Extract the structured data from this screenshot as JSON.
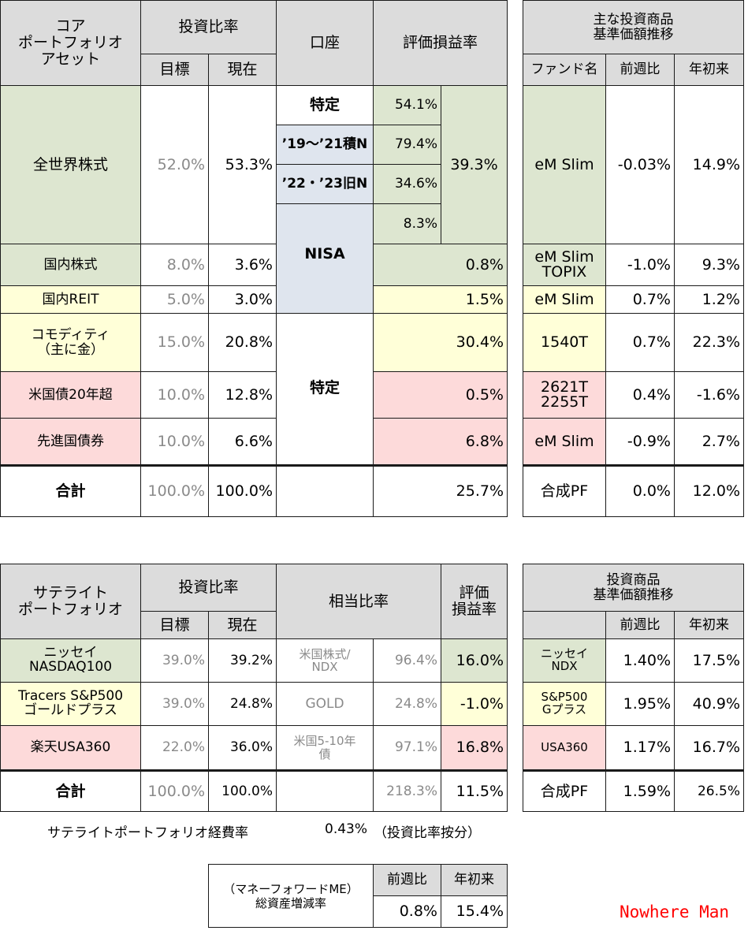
{
  "core": {
    "header": {
      "asset": "コア\nポートフォリオ\nアセット",
      "ratio": "投資比率",
      "target": "目標",
      "current": "現在",
      "account": "口座",
      "gain": "評価損益率"
    },
    "rows": {
      "world": {
        "name": "全世界株式",
        "target": "52.0%",
        "current": "53.3%",
        "total_gain": "39.3%"
      },
      "world_accounts": [
        {
          "account": "特定",
          "gain": "54.1%"
        },
        {
          "account": "’19～’21積N",
          "gain": "79.4%"
        },
        {
          "account": "’22・’23旧N",
          "gain": "34.6%"
        },
        {
          "account": "",
          "gain": "8.3%"
        }
      ],
      "nisa_label": "NISA",
      "tokutei_label": "特定",
      "domestic_stock": {
        "name": "国内株式",
        "target": "8.0%",
        "current": "3.6%",
        "gain": "0.8%"
      },
      "domestic_reit": {
        "name": "国内REIT",
        "target": "5.0%",
        "current": "3.0%",
        "gain": "1.5%"
      },
      "commodity": {
        "name": "コモディティ\n（主に金）",
        "target": "15.0%",
        "current": "20.8%",
        "gain": "30.4%"
      },
      "us_bond": {
        "name": "米国債20年超",
        "target": "10.0%",
        "current": "12.8%",
        "gain": "0.5%"
      },
      "dev_bond": {
        "name": "先進国債券",
        "target": "10.0%",
        "current": "6.6%",
        "gain": "6.8%"
      },
      "total": {
        "name": "合計",
        "target": "100.0%",
        "current": "100.0%",
        "gain": "25.7%"
      }
    }
  },
  "funds": {
    "title": "主な投資商品\n基準価額推移",
    "col_fund": "ファンド名",
    "col_week": "前週比",
    "col_ytd": "年初来",
    "rows": [
      {
        "name": "eM Slim",
        "week": "-0.03%",
        "ytd": "14.9%"
      },
      {
        "name": "eM Slim\nTOPIX",
        "week": "-1.0%",
        "ytd": "9.3%"
      },
      {
        "name": "eM Slim",
        "week": "0.7%",
        "ytd": "1.2%"
      },
      {
        "name": "1540T",
        "week": "0.7%",
        "ytd": "22.3%"
      },
      {
        "name": "2621T\n2255T",
        "week": "0.4%",
        "ytd": "-1.6%"
      },
      {
        "name": "eM Slim",
        "week": "-0.9%",
        "ytd": "2.7%"
      },
      {
        "name": "合成PF",
        "week": "0.0%",
        "ytd": "12.0%"
      }
    ]
  },
  "satellite": {
    "header": {
      "title": "サテライト\nポートフォリオ",
      "ratio": "投資比率",
      "target": "目標",
      "current": "現在",
      "equiv": "相当比率",
      "gain": "評価\n損益率"
    },
    "rows": [
      {
        "name": "ニッセイ\nNASDAQ100",
        "target": "39.0%",
        "current": "39.2%",
        "equiv_name": "米国株式/\nNDX",
        "equiv": "96.4%",
        "gain": "16.0%"
      },
      {
        "name": "Tracers S&P500\nゴールドプラス",
        "target": "39.0%",
        "current": "24.8%",
        "equiv_name": "GOLD",
        "equiv": "24.8%",
        "gain": "-1.0%"
      },
      {
        "name": "楽天USA360",
        "target": "22.0%",
        "current": "36.0%",
        "equiv_name": "米国5-10年\n債",
        "equiv": "97.1%",
        "gain": "16.8%"
      }
    ],
    "total": {
      "name": "合計",
      "target": "100.0%",
      "current": "100.0%",
      "equiv": "218.3%",
      "gain": "11.5%"
    },
    "expense_label": "サテライトポートフォリオ経費率",
    "expense_value": "0.43%",
    "expense_note": "（投資比率按分）"
  },
  "products": {
    "title": "投資商品\n基準価額推移",
    "col_week": "前週比",
    "col_ytd": "年初来",
    "rows": [
      {
        "name": "ニッセイ\nNDX",
        "week": "1.40%",
        "ytd": "17.5%"
      },
      {
        "name": "S&P500\nGプラス",
        "week": "1.95%",
        "ytd": "40.9%"
      },
      {
        "name": "USA360",
        "week": "1.17%",
        "ytd": "16.7%"
      },
      {
        "name": "合成PF",
        "week": "1.59%",
        "ytd": "26.5%"
      }
    ]
  },
  "assets_change": {
    "label": "（マネーフォワードME）\n総資産増減率",
    "col_week": "前週比",
    "col_ytd": "年初来",
    "week": "0.8%",
    "ytd": "15.4%"
  },
  "signature": "Nowhere Man"
}
